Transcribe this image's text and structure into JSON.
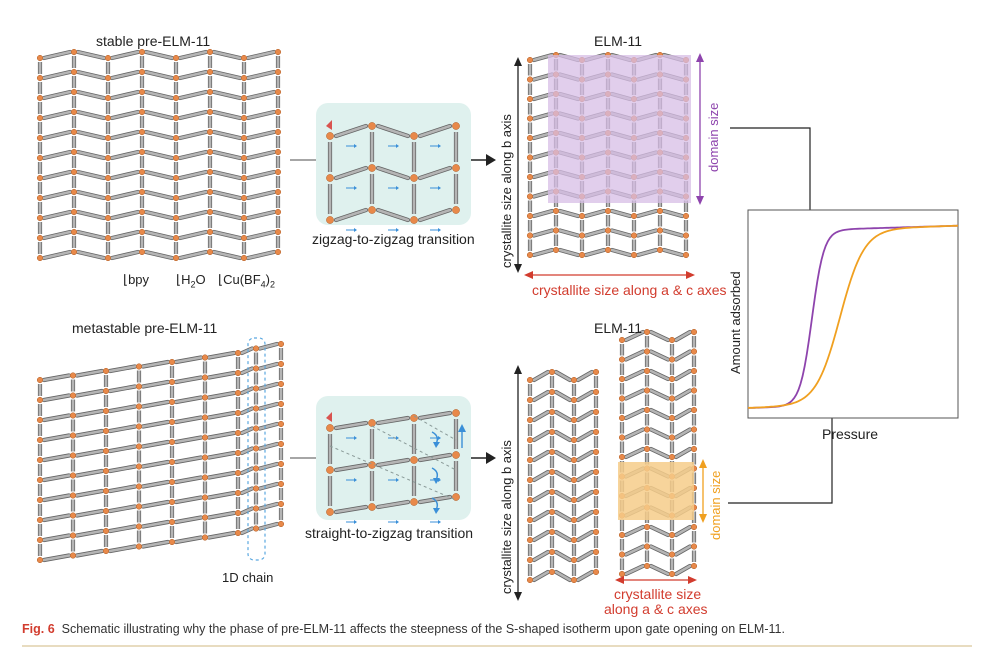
{
  "panels": {
    "stable_title": "stable pre-ELM-11",
    "metastable_title": "metastable pre-ELM-11",
    "elm_top_title": "ELM-11",
    "elm_bottom_title": "ELM-11",
    "component_labels": [
      "bpy",
      "H",
      "2",
      "O",
      "Cu(BF",
      "4",
      ")",
      "2"
    ],
    "chain_label": "1D chain"
  },
  "transitions": {
    "top": "zigzag-to-zigzag transition",
    "bottom": "straight-to-zigzag transition"
  },
  "annotations": {
    "b_axis_top": "crystallite size along b axis",
    "b_axis_bottom": "crystallite size along b axis",
    "ac_top": "crystallite size along a & c axes",
    "ac_bottom_line1": "crystallite size",
    "ac_bottom_line2": "along a & c axes",
    "domain_top": "domain size",
    "domain_bottom": "domain size"
  },
  "isotherm": {
    "ylabel": "Amount adsorbed",
    "xlabel": "Pressure"
  },
  "caption": {
    "fig": "Fig. 6",
    "text": "Schematic illustrating why the phase of pre-ELM-11 affects the steepness of the S-shaped isotherm upon gate opening on ELM-11."
  },
  "colors": {
    "node": "#e8894a",
    "rod": "#9a9a9a",
    "purple": "#8e44ad",
    "purple_fill": "#d7bde6",
    "orange": "#f0a020",
    "orange_fill": "#f6cc8a",
    "red": "#d23c2e",
    "teal_box": "#dff1ee",
    "blue": "#3a8fd8"
  }
}
